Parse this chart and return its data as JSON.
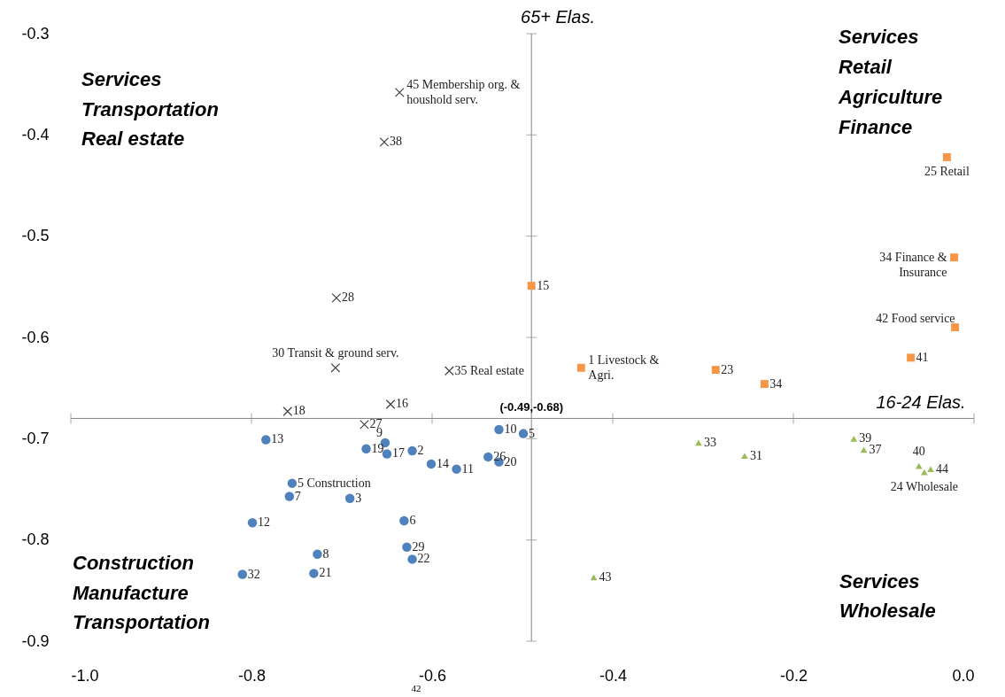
{
  "chart_data": {
    "type": "scatter",
    "xlabel": "16-24 Elas.",
    "ylabel": "65+ Elas.",
    "xlim": [
      -1.0,
      0.0
    ],
    "ylim": [
      -0.9,
      -0.3
    ],
    "xticks": [
      {
        "value": -1.0,
        "label": "-1.0"
      },
      -0.8,
      -0.6,
      -0.4,
      -0.2,
      {
        "value": 0.0,
        "label": "0.0"
      }
    ],
    "yticks": [
      -0.9,
      -0.8,
      -0.7,
      -0.6,
      -0.5,
      -0.4,
      -0.3
    ],
    "grid": false,
    "ref_lines": [
      {
        "axis": "x",
        "value": -0.49,
        "color": "#868686"
      },
      {
        "axis": "y",
        "value": -0.68,
        "color": "#868686"
      }
    ],
    "series": [
      {
        "color": "#4f81bd",
        "marker": "circle",
        "x": [
          -0.784,
          -0.652,
          -0.673,
          -0.65,
          -0.622,
          -0.601,
          -0.573,
          -0.526,
          -0.499,
          -0.538,
          -0.526,
          -0.755,
          -0.758,
          -0.691,
          -0.799,
          -0.631,
          -0.628,
          -0.622,
          -0.727,
          -0.731,
          -0.81
        ],
        "values": [
          -0.701,
          -0.704,
          -0.71,
          -0.715,
          -0.712,
          -0.725,
          -0.73,
          -0.691,
          -0.695,
          -0.718,
          -0.723,
          -0.744,
          -0.757,
          -0.759,
          -0.783,
          -0.781,
          -0.807,
          -0.819,
          -0.814,
          -0.833,
          -0.834
        ]
      },
      {
        "color": "#f79646",
        "marker": "square",
        "x": [
          -0.49,
          -0.435,
          -0.286,
          -0.232,
          -0.03,
          -0.022,
          -0.021,
          -0.07
        ],
        "values": [
          -0.549,
          -0.63,
          -0.632,
          -0.646,
          -0.422,
          -0.521,
          -0.59,
          -0.62
        ]
      },
      {
        "color": "#9bbb59",
        "marker": "triangle",
        "x": [
          -0.305,
          -0.254,
          -0.421,
          -0.133,
          -0.122,
          -0.061,
          -0.055,
          -0.048
        ],
        "values": [
          -0.704,
          -0.717,
          -0.837,
          -0.7,
          -0.711,
          -0.727,
          -0.733,
          -0.73
        ]
      },
      {
        "color": "#404040",
        "marker": "cross",
        "x": [
          -0.636,
          -0.653,
          -0.706,
          -0.707,
          -0.581,
          -0.646,
          -0.76,
          -0.675
        ],
        "values": [
          -0.358,
          -0.407,
          -0.561,
          -0.63,
          -0.633,
          -0.666,
          -0.673,
          -0.686
        ]
      }
    ],
    "annotations": [
      "Services",
      "Transportation",
      "Real estate",
      "Services",
      "Retail",
      "Agriculture",
      "Finance",
      "Construction",
      "Manufacture",
      "Transportation",
      "Services",
      "Wholesale",
      {
        "text": "(-0.49,-0.68)",
        "x": -0.49,
        "y": -0.68
      },
      "42",
      {
        "text": "13",
        "x": -0.784,
        "y": -0.701
      },
      {
        "text": "9",
        "x": -0.652,
        "y": -0.704
      },
      {
        "text": "19",
        "x": -0.673,
        "y": -0.71
      },
      {
        "text": "17",
        "x": -0.65,
        "y": -0.715
      },
      {
        "text": "2",
        "x": -0.622,
        "y": -0.712
      },
      {
        "text": "14",
        "x": -0.601,
        "y": -0.725
      },
      {
        "text": "11",
        "x": -0.573,
        "y": -0.73
      },
      {
        "text": "10",
        "x": -0.526,
        "y": -0.691
      },
      {
        "text": "5",
        "x": -0.499,
        "y": -0.695
      },
      {
        "text": "26",
        "x": -0.538,
        "y": -0.718
      },
      {
        "text": "20",
        "x": -0.526,
        "y": -0.723
      },
      {
        "text": "5 Construction",
        "x": -0.755,
        "y": -0.744
      },
      {
        "text": "7",
        "x": -0.758,
        "y": -0.757
      },
      {
        "text": "3",
        "x": -0.691,
        "y": -0.759
      },
      {
        "text": "12",
        "x": -0.799,
        "y": -0.783
      },
      {
        "text": "6",
        "x": -0.631,
        "y": -0.781
      },
      {
        "text": "29",
        "x": -0.628,
        "y": -0.807
      },
      {
        "text": "22",
        "x": -0.622,
        "y": -0.819
      },
      {
        "text": "8",
        "x": -0.727,
        "y": -0.814
      },
      {
        "text": "21",
        "x": -0.731,
        "y": -0.833
      },
      {
        "text": "32",
        "x": -0.81,
        "y": -0.834
      },
      {
        "text": "15",
        "x": -0.49,
        "y": -0.549
      },
      {
        "text": "1  Livestock & Agri.",
        "x": -0.435,
        "y": -0.63
      },
      {
        "text": "23",
        "x": -0.286,
        "y": -0.632
      },
      {
        "text": "34",
        "x": -0.232,
        "y": -0.646
      },
      {
        "text": "25 Retail",
        "x": -0.03,
        "y": -0.422
      },
      {
        "text": "34 Finance & Insurance",
        "x": -0.022,
        "y": -0.521
      },
      {
        "text": "42 Food service",
        "x": -0.021,
        "y": -0.59
      },
      {
        "text": "41",
        "x": -0.07,
        "y": -0.62
      },
      {
        "text": "33",
        "x": -0.305,
        "y": -0.704
      },
      {
        "text": "31",
        "x": -0.254,
        "y": -0.717
      },
      {
        "text": "43",
        "x": -0.421,
        "y": -0.837
      },
      {
        "text": "39",
        "x": -0.133,
        "y": -0.7
      },
      {
        "text": "37",
        "x": -0.122,
        "y": -0.711
      },
      {
        "text": "40",
        "x": -0.061,
        "y": -0.727
      },
      {
        "text": "24 Wholesale",
        "x": -0.055,
        "y": -0.733
      },
      {
        "text": "44",
        "x": -0.048,
        "y": -0.73
      },
      {
        "text": "45 Membership org. & houshold serv.",
        "x": -0.636,
        "y": -0.358
      },
      {
        "text": "38",
        "x": -0.653,
        "y": -0.407
      },
      {
        "text": "28",
        "x": -0.706,
        "y": -0.561
      },
      {
        "text": "30 Transit & ground serv.",
        "x": -0.707,
        "y": -0.63
      },
      {
        "text": "35 Real estate",
        "x": -0.581,
        "y": -0.633
      },
      {
        "text": "16",
        "x": -0.646,
        "y": -0.666
      },
      {
        "text": "18",
        "x": -0.76,
        "y": -0.673
      },
      {
        "text": "27",
        "x": -0.675,
        "y": -0.686
      }
    ]
  }
}
